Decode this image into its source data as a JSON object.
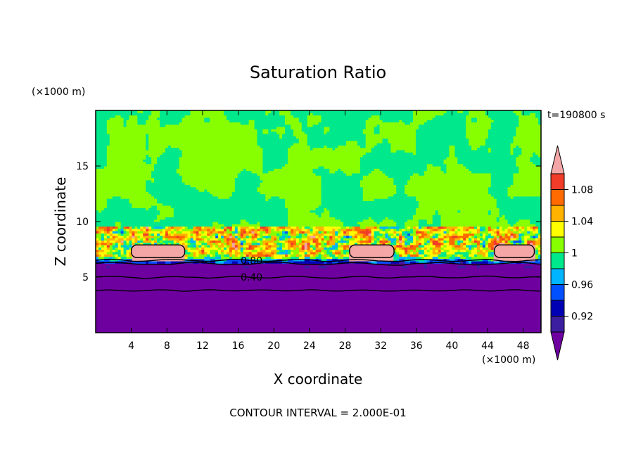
{
  "chart_data": {
    "type": "heatmap",
    "title": "Saturation Ratio",
    "xlabel": "X coordinate",
    "ylabel": "Z coordinate",
    "x_unit": "(×1000 m)",
    "y_unit": "(×1000 m)",
    "time_label": "t=190800 s",
    "footer": "CONTOUR INTERVAL = 2.000E-01",
    "xlim": [
      0,
      50
    ],
    "ylim": [
      0,
      20
    ],
    "x_ticks": [
      4,
      8,
      12,
      16,
      20,
      24,
      28,
      32,
      36,
      40,
      44,
      48
    ],
    "y_ticks": [
      5,
      10,
      15
    ],
    "colorbar": {
      "tick_labels": [
        "1.08",
        "1.04",
        "1",
        "0.96",
        "0.92"
      ],
      "tick_values": [
        1.08,
        1.04,
        1.0,
        0.96,
        0.92
      ],
      "levels": [
        {
          "min": 1.1,
          "max": null,
          "color": "#f4a6a6"
        },
        {
          "min": 1.08,
          "max": 1.1,
          "color": "#f03c28"
        },
        {
          "min": 1.06,
          "max": 1.08,
          "color": "#ff6a00"
        },
        {
          "min": 1.04,
          "max": 1.06,
          "color": "#ffb200"
        },
        {
          "min": 1.02,
          "max": 1.04,
          "color": "#ffff00"
        },
        {
          "min": 1.0,
          "max": 1.02,
          "color": "#88ff00"
        },
        {
          "min": 0.98,
          "max": 1.0,
          "color": "#00e88c"
        },
        {
          "min": 0.96,
          "max": 0.98,
          "color": "#00b4ff"
        },
        {
          "min": 0.94,
          "max": 0.96,
          "color": "#0050ff"
        },
        {
          "min": 0.92,
          "max": 0.94,
          "color": "#0000b4"
        },
        {
          "min": 0.9,
          "max": 0.92,
          "color": "#3c1ea0"
        },
        {
          "min": null,
          "max": 0.9,
          "color": "#6e00a0"
        }
      ]
    },
    "contour_labels": [
      {
        "text": "0.80",
        "x": 17.5,
        "z": 6.5
      },
      {
        "text": "0.40",
        "x": 17.5,
        "z": 5.0
      }
    ],
    "regions": {
      "dry_layer_top_z": 6.2,
      "cloud_layer_bottom_z": 6.8,
      "cloud_layer_top_z": 9.5,
      "upper_field_value": 0.99,
      "cloud_cores_x": [
        {
          "center": 7.0,
          "width": 6.0
        },
        {
          "center": 31.0,
          "width": 5.0
        },
        {
          "center": 47.0,
          "width": 4.5
        }
      ]
    }
  }
}
